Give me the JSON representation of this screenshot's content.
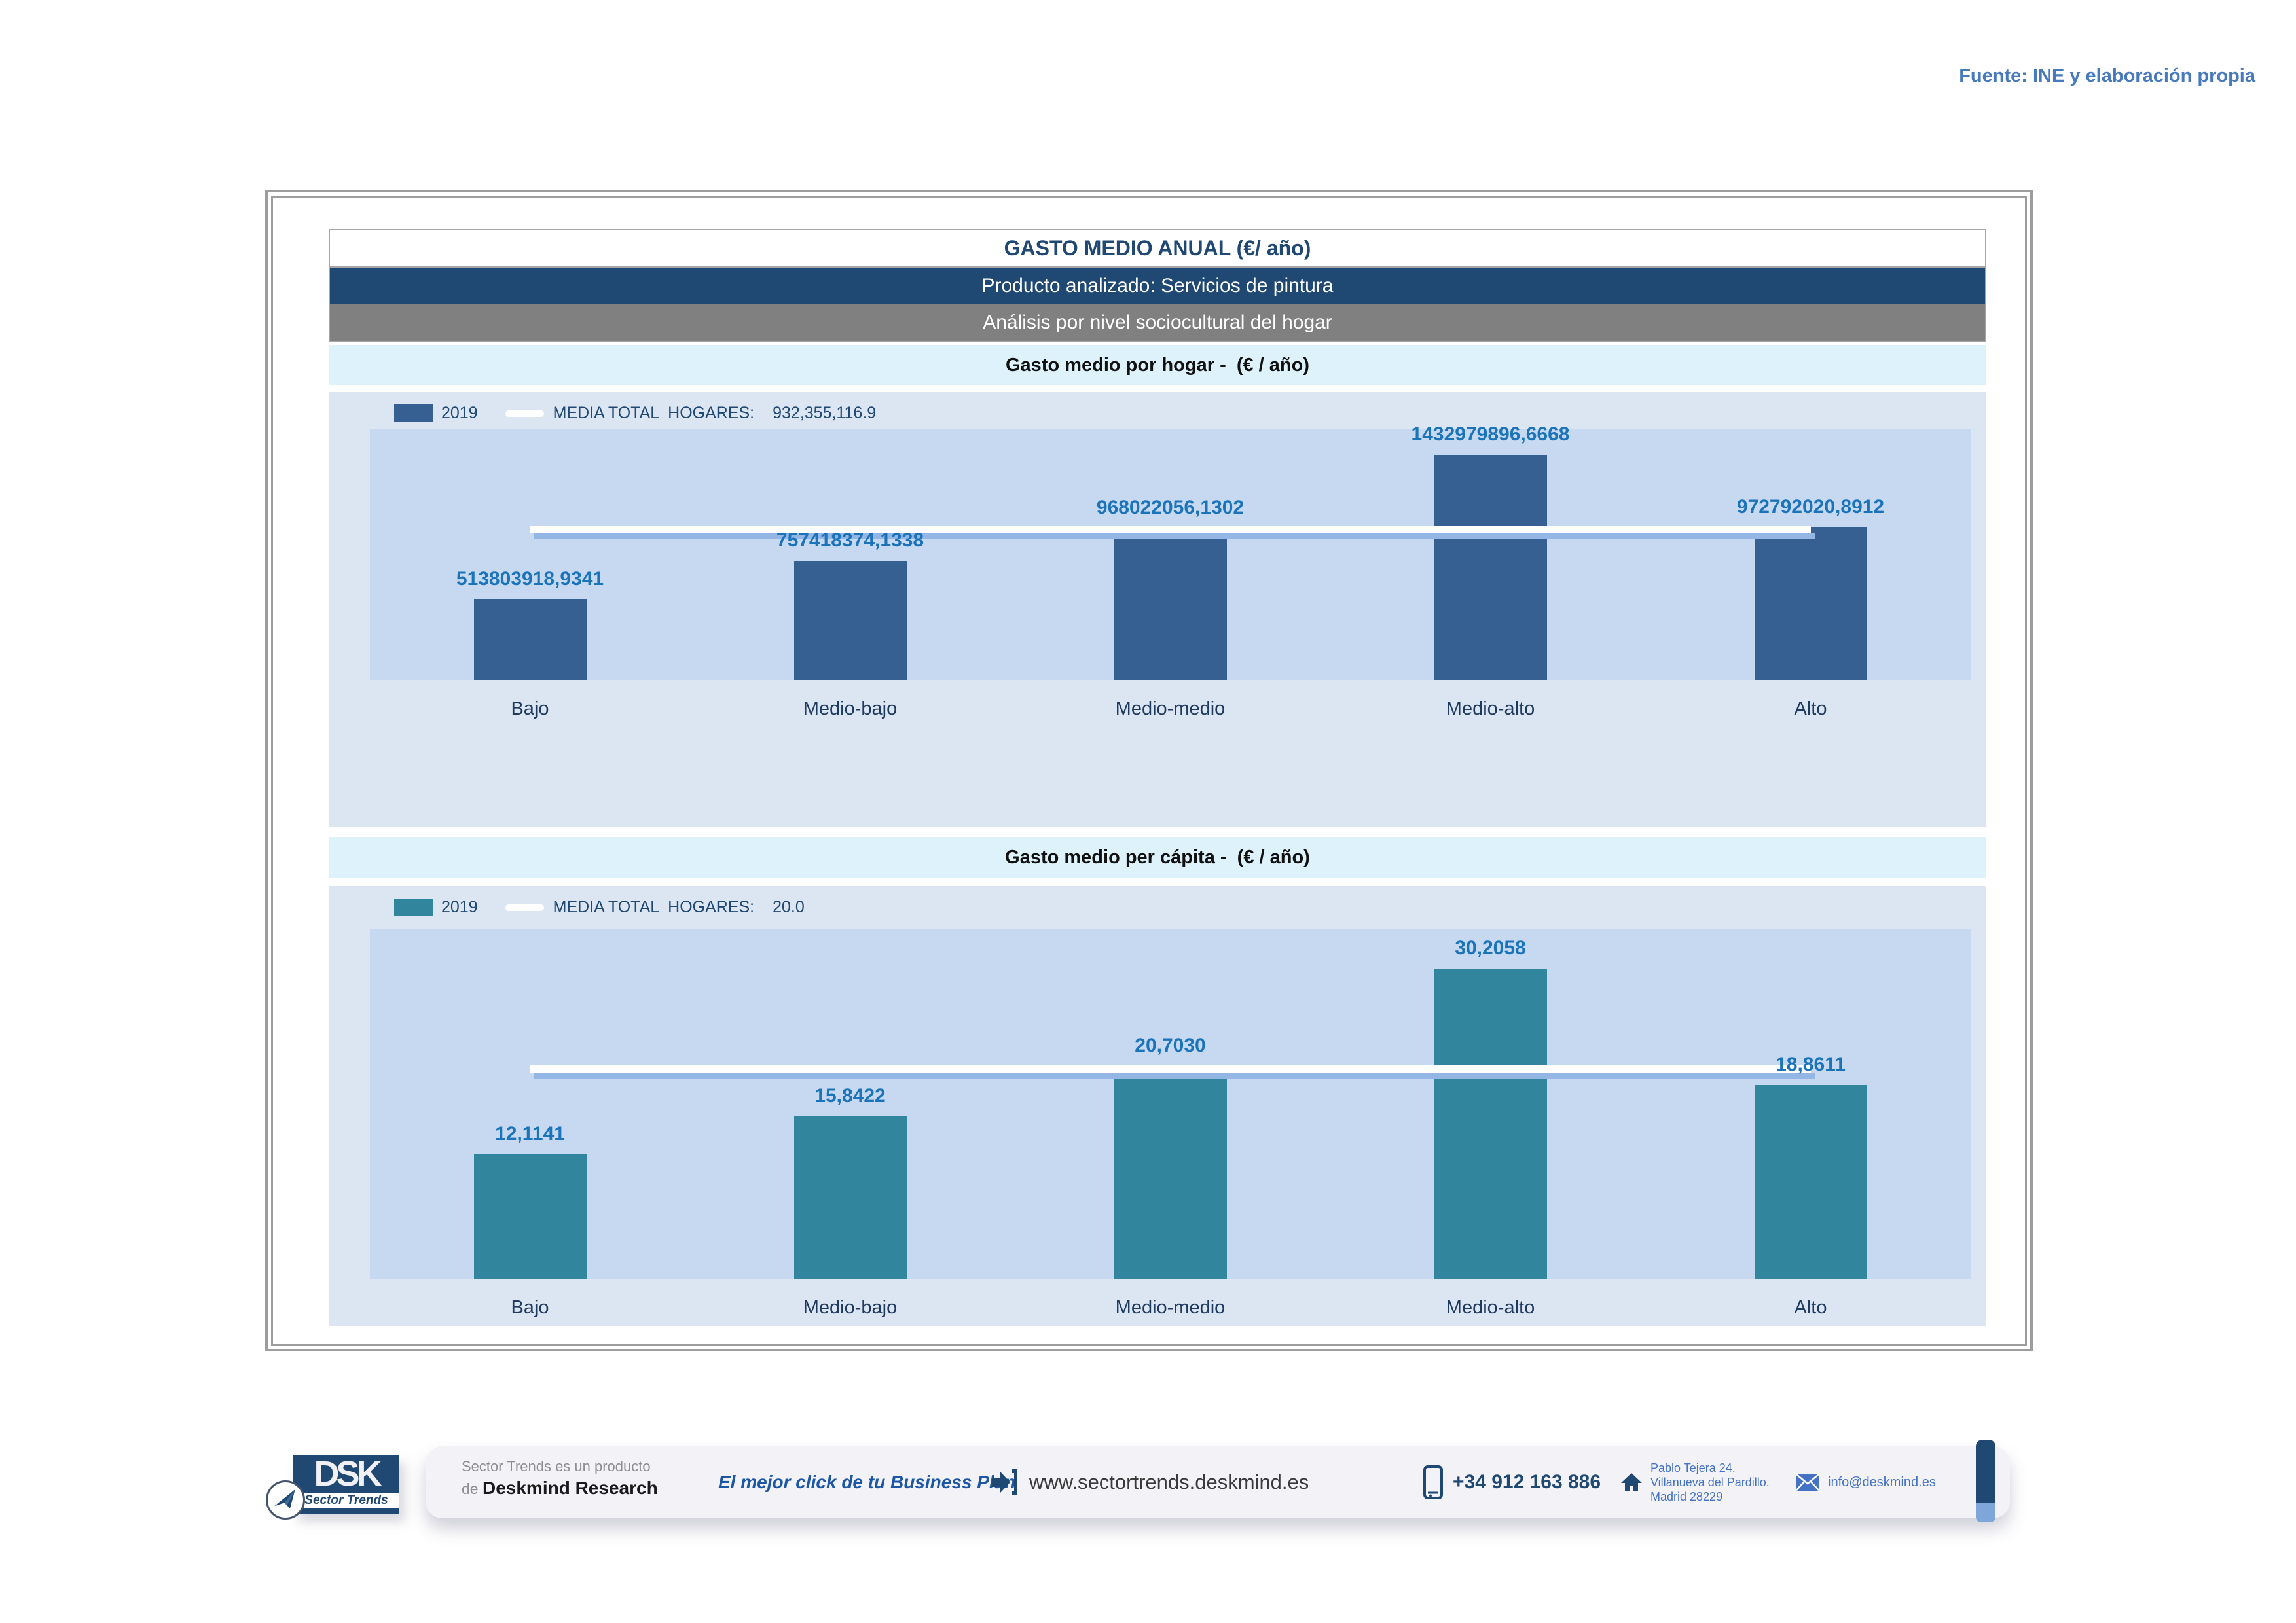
{
  "page": {
    "source_note": "Fuente: INE y elaboración propia"
  },
  "report": {
    "title": "GASTO MEDIO ANUAL (€/ año)",
    "product_line": "Producto analizado: Servicios de pintura",
    "analysis_line": "Análisis por nivel sociocultural del hogar"
  },
  "chart_data": [
    {
      "type": "bar",
      "title": "Gasto medio por hogar -  (€ / año)",
      "categories": [
        "Bajo",
        "Medio-bajo",
        "Medio-medio",
        "Medio-alto",
        "Alto"
      ],
      "values": [
        513803918.9341,
        757418374.1338,
        968022056.1302,
        1432979896.6668,
        972792020.8912
      ],
      "value_labels": [
        "513803918,9341",
        "757418374,1338",
        "968022056,1302",
        "1432979896,6668",
        "972792020,8912"
      ],
      "series_name": "2019",
      "media_label": "MEDIA TOTAL  HOGARES:",
      "media_value_label": "932,355,116.9",
      "media": 932355116.9,
      "ylim": [
        0,
        1600000000
      ],
      "bar_color": "#366091",
      "media_line_color": "#ffffff",
      "grid": false,
      "legend_position": "top-left",
      "xlabel": "",
      "ylabel": ""
    },
    {
      "type": "bar",
      "title": "Gasto medio per cápita -  (€ / año)",
      "categories": [
        "Bajo",
        "Medio-bajo",
        "Medio-medio",
        "Medio-alto",
        "Alto"
      ],
      "values": [
        12.1141,
        15.8422,
        20.703,
        30.2058,
        18.8611
      ],
      "value_labels": [
        "12,1141",
        "15,8422",
        "20,7030",
        "30,2058",
        "18,8611"
      ],
      "series_name": "2019",
      "media_label": "MEDIA TOTAL  HOGARES:",
      "media_value_label": "20.0",
      "media": 20.0,
      "ylim": [
        0,
        34
      ],
      "bar_color": "#31859C",
      "media_line_color": "#ffffff",
      "grid": false,
      "legend_position": "top-left",
      "xlabel": "",
      "ylabel": ""
    }
  ],
  "footer": {
    "logo_text": "DSK",
    "logo_subtext": "Sector Trends",
    "tagline_line1": "Sector Trends es un producto",
    "tagline_prefix": "de ",
    "tagline_brand": "Deskmind Research",
    "slogan": "El mejor click de tu Business Plan",
    "website": "www.sectortrends.deskmind.es",
    "phone": "+34 912 163 886",
    "address_line1": "Pablo Tejera 24.",
    "address_line2": "Villanueva del Pardillo.",
    "address_line3": "Madrid 28229",
    "email": "info@deskmind.es"
  }
}
